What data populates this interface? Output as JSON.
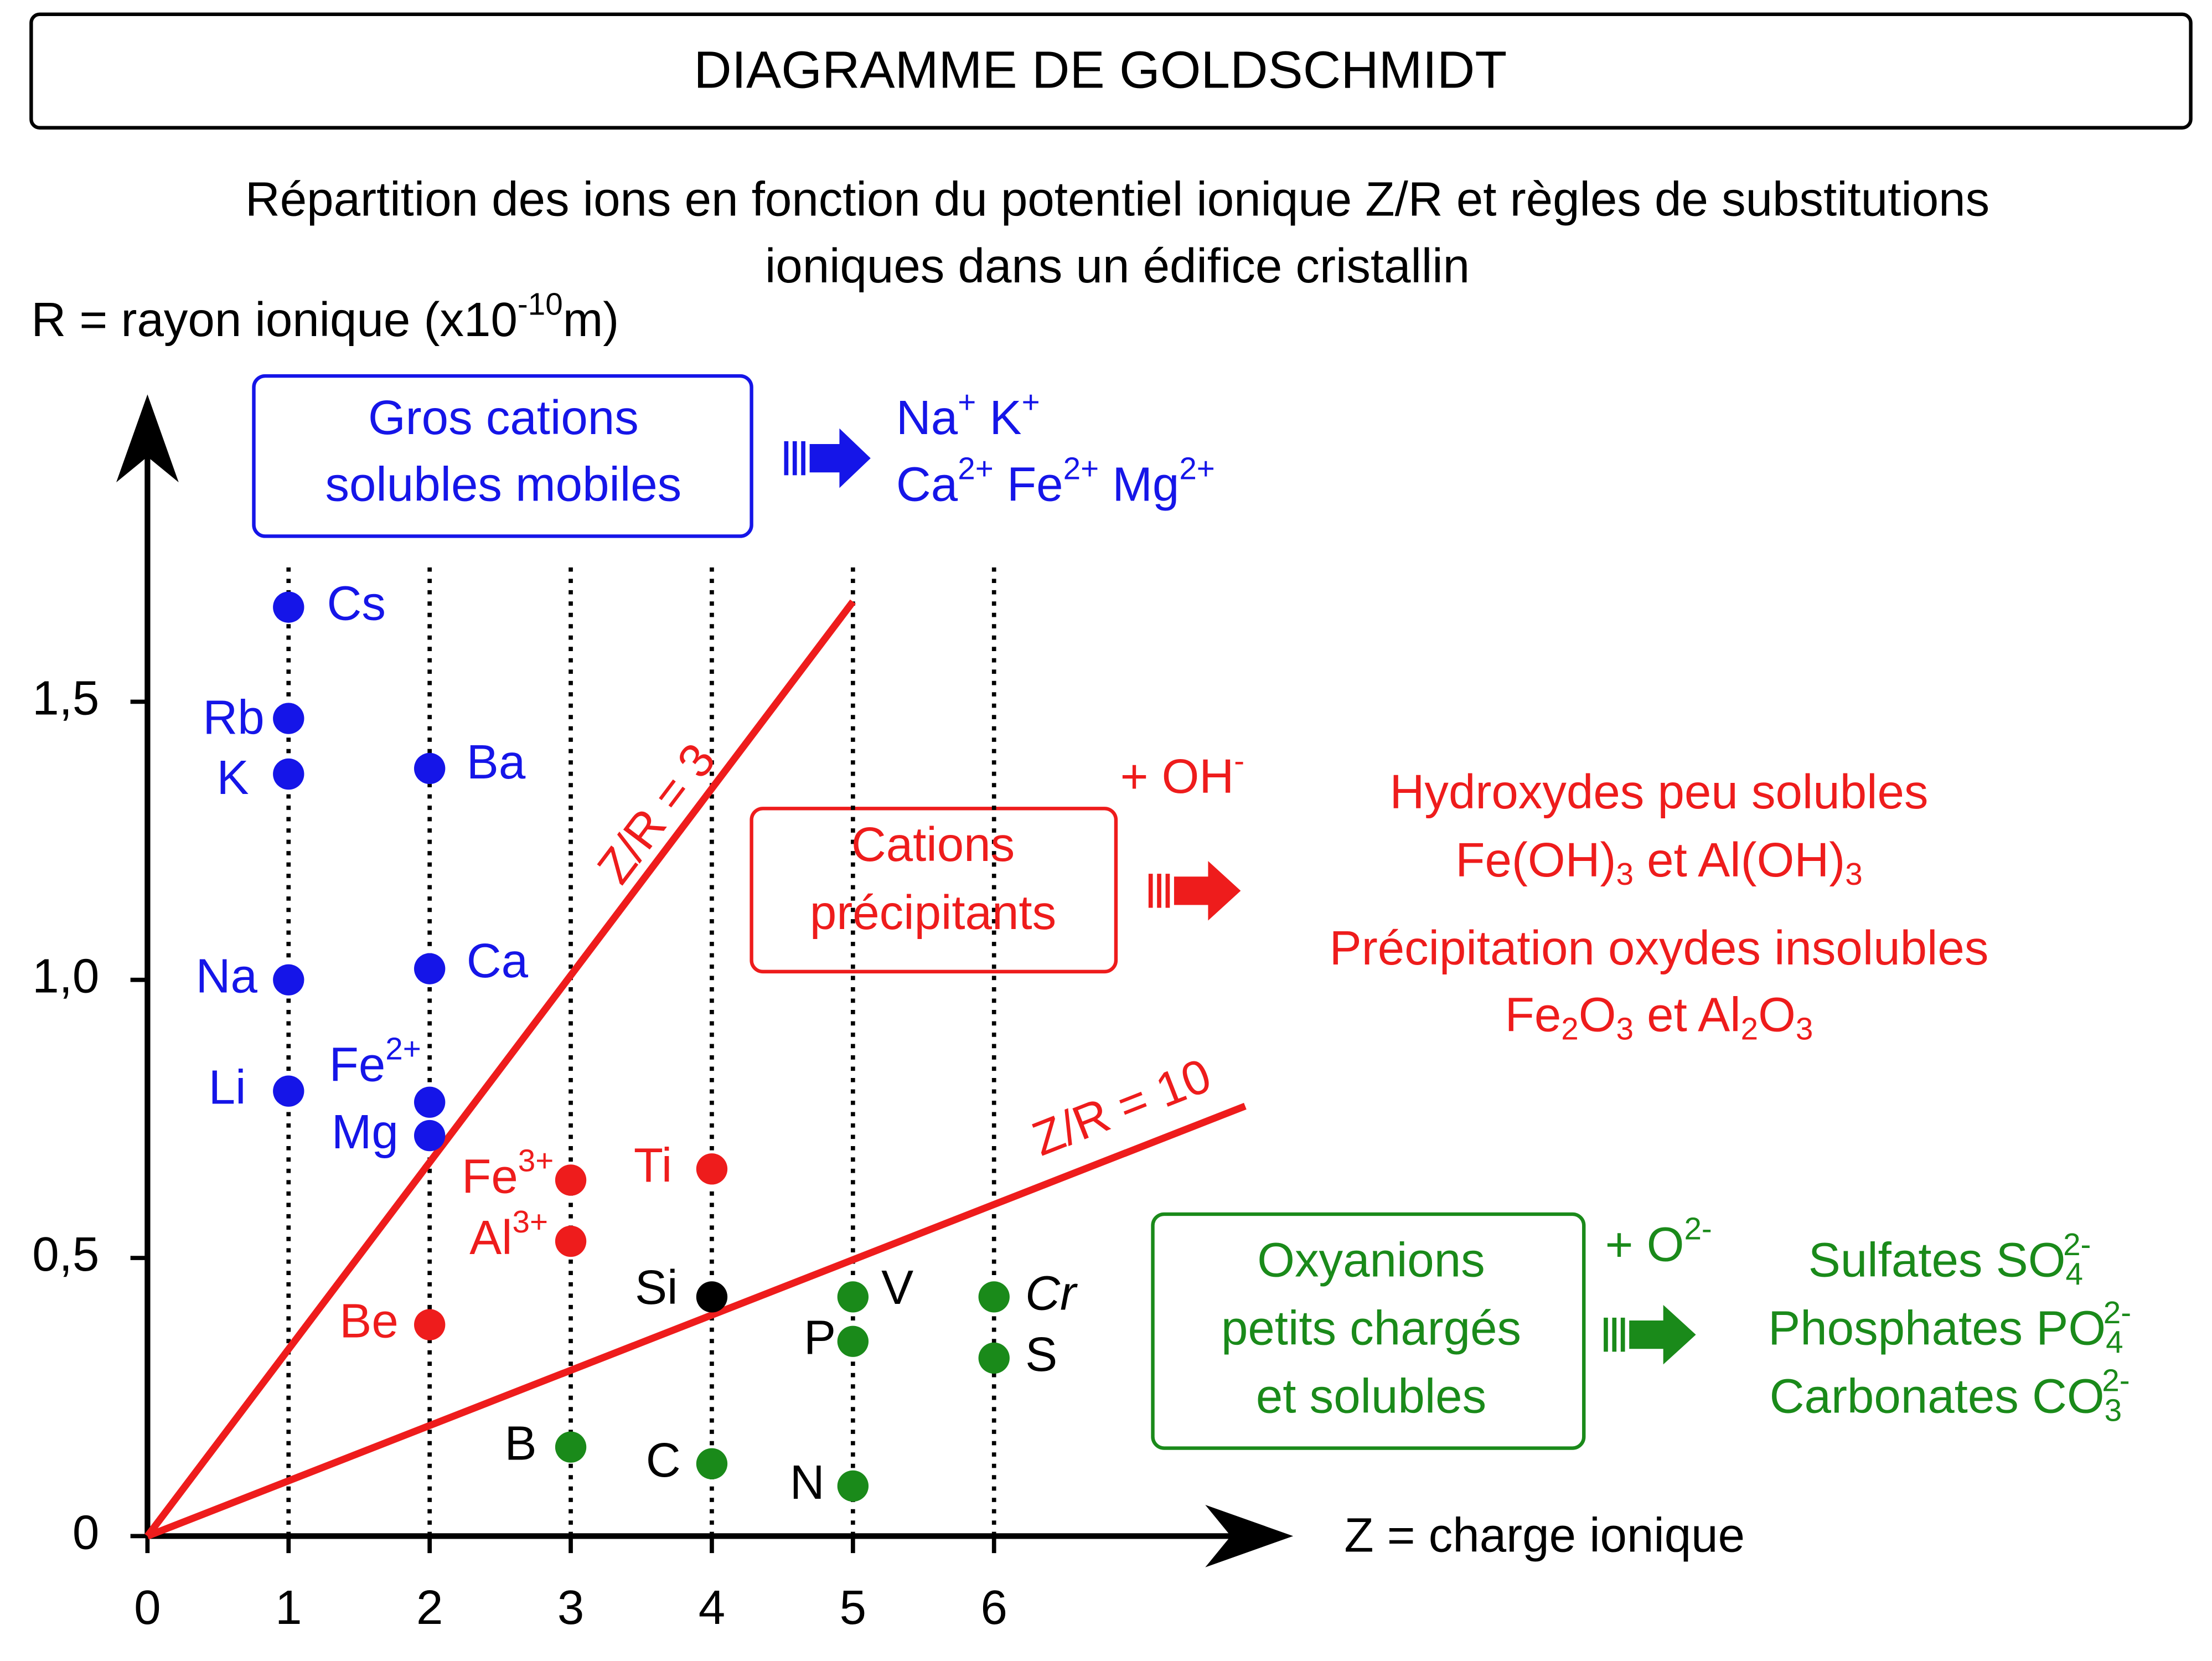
{
  "header": {
    "title": "DIAGRAMME DE GOLDSCHMIDT",
    "subtitle_lines": [
      "Répartition des ions en fonction du potentiel ionique Z/R et règles de substitutions",
      "ioniques dans un édifice cristallin"
    ]
  },
  "chart_data": {
    "type": "scatter",
    "y_label": [
      "R = rayon ionique (x10",
      {
        "sup": "-10"
      },
      "m)"
    ],
    "x_label": "Z = charge ionique",
    "xlim": [
      0,
      8.1
    ],
    "ylim": [
      0,
      2.05
    ],
    "xticks": [
      0,
      1,
      2,
      3,
      4,
      5,
      6
    ],
    "yticks": [
      0,
      {
        "value": 0.5,
        "label": "0,5"
      },
      {
        "value": 1,
        "label": "1,0"
      },
      {
        "value": 1.5,
        "label": "1,5"
      }
    ],
    "grid": true,
    "points": [
      {
        "label": "Cs",
        "x": 1,
        "y": 1.67,
        "color": "#1515e8"
      },
      {
        "label": "Rb",
        "x": 1,
        "y": 1.47,
        "color": "#1515e8"
      },
      {
        "label": "K",
        "x": 1,
        "y": 1.37,
        "color": "#1515e8"
      },
      {
        "label": "Na",
        "x": 1,
        "y": 1.0,
        "color": "#1515e8"
      },
      {
        "label": "Li",
        "x": 1,
        "y": 0.8,
        "color": "#1515e8"
      },
      {
        "label": "Ba",
        "x": 2,
        "y": 1.38,
        "color": "#1515e8"
      },
      {
        "label": "Ca",
        "x": 2,
        "y": 1.02,
        "color": "#1515e8"
      },
      {
        "label": [
          "Fe",
          {
            "sup": "2+"
          }
        ],
        "x": 2,
        "y": 0.78,
        "color": "#1515e8"
      },
      {
        "label": "Mg",
        "x": 2,
        "y": 0.72,
        "color": "#1515e8"
      },
      {
        "label": "Be",
        "x": 2,
        "y": 0.38,
        "color": "#ee1c1c"
      },
      {
        "label": [
          "Fe",
          {
            "sup": "3+"
          }
        ],
        "x": 3,
        "y": 0.64,
        "color": "#ee1c1c"
      },
      {
        "label": [
          "Al",
          {
            "sup": "3+"
          }
        ],
        "x": 3,
        "y": 0.53,
        "color": "#ee1c1c"
      },
      {
        "label": "Ti",
        "x": 4,
        "y": 0.66,
        "color": "#ee1c1c"
      },
      {
        "label": "Si",
        "x": 4,
        "y": 0.43,
        "color": "#000000"
      },
      {
        "label": "B",
        "x": 3,
        "y": 0.16,
        "color": "#1a8a1a"
      },
      {
        "label": "C",
        "x": 4,
        "y": 0.13,
        "color": "#1a8a1a"
      },
      {
        "label": "V",
        "x": 5,
        "y": 0.43,
        "color": "#1a8a1a"
      },
      {
        "label": "P",
        "x": 5,
        "y": 0.35,
        "color": "#1a8a1a"
      },
      {
        "label": "N",
        "x": 5,
        "y": 0.09,
        "color": "#1a8a1a"
      },
      {
        "label": [
          {
            "i": "Cr"
          }
        ],
        "x": 6,
        "y": 0.43,
        "color": "#1a8a1a"
      },
      {
        "label": "S",
        "x": 6,
        "y": 0.32,
        "color": "#1a8a1a"
      }
    ],
    "lines": [
      {
        "label": "Z/R = 3",
        "x": [
          0,
          5
        ],
        "y": [
          0,
          1.68
        ],
        "color": "#ee1c1c"
      },
      {
        "label": "Z/R = 10",
        "x": [
          0,
          7.78
        ],
        "y": [
          0,
          0.773
        ],
        "color": "#ee1c1c"
      }
    ]
  },
  "groups": [
    {
      "box": [
        "Gros cations",
        "solubles mobiles"
      ],
      "color": "#1515e8",
      "result": [
        [
          "Na",
          {
            "sup": "+"
          },
          " K",
          {
            "sup": "+"
          }
        ],
        [
          "Ca",
          {
            "sup": "2+"
          },
          " Fe",
          {
            "sup": "2+"
          },
          " Mg",
          {
            "sup": "2+"
          }
        ]
      ]
    },
    {
      "box": [
        "Cations",
        "précipitants"
      ],
      "color": "#ee1c1c",
      "reagent": [
        "+ OH",
        {
          "sup": "-"
        }
      ],
      "result": [
        "Hydroxydes peu solubles",
        [
          "Fe(OH)",
          {
            "sub": "3"
          },
          " et Al(OH)",
          {
            "sub": "3"
          }
        ],
        "Précipitation oxydes insolubles",
        [
          "Fe",
          {
            "sub": "2"
          },
          "O",
          {
            "sub": "3"
          },
          " et Al",
          {
            "sub": "2"
          },
          "O",
          {
            "sub": "3"
          }
        ]
      ]
    },
    {
      "box": [
        "Oxyanions",
        "petits chargés",
        "et solubles"
      ],
      "color": "#1a8a1a",
      "reagent": [
        "+ O",
        {
          "sup": "2-"
        }
      ],
      "result": [
        [
          "Sulfates SO",
          {
            "sub": "4"
          },
          {
            "sup": "2-"
          }
        ],
        [
          "Phosphates PO",
          {
            "sub": "4"
          },
          {
            "sup": "2-"
          }
        ],
        [
          "Carbonates CO",
          {
            "sub": "3"
          },
          {
            "sup": "2-"
          }
        ]
      ]
    }
  ]
}
